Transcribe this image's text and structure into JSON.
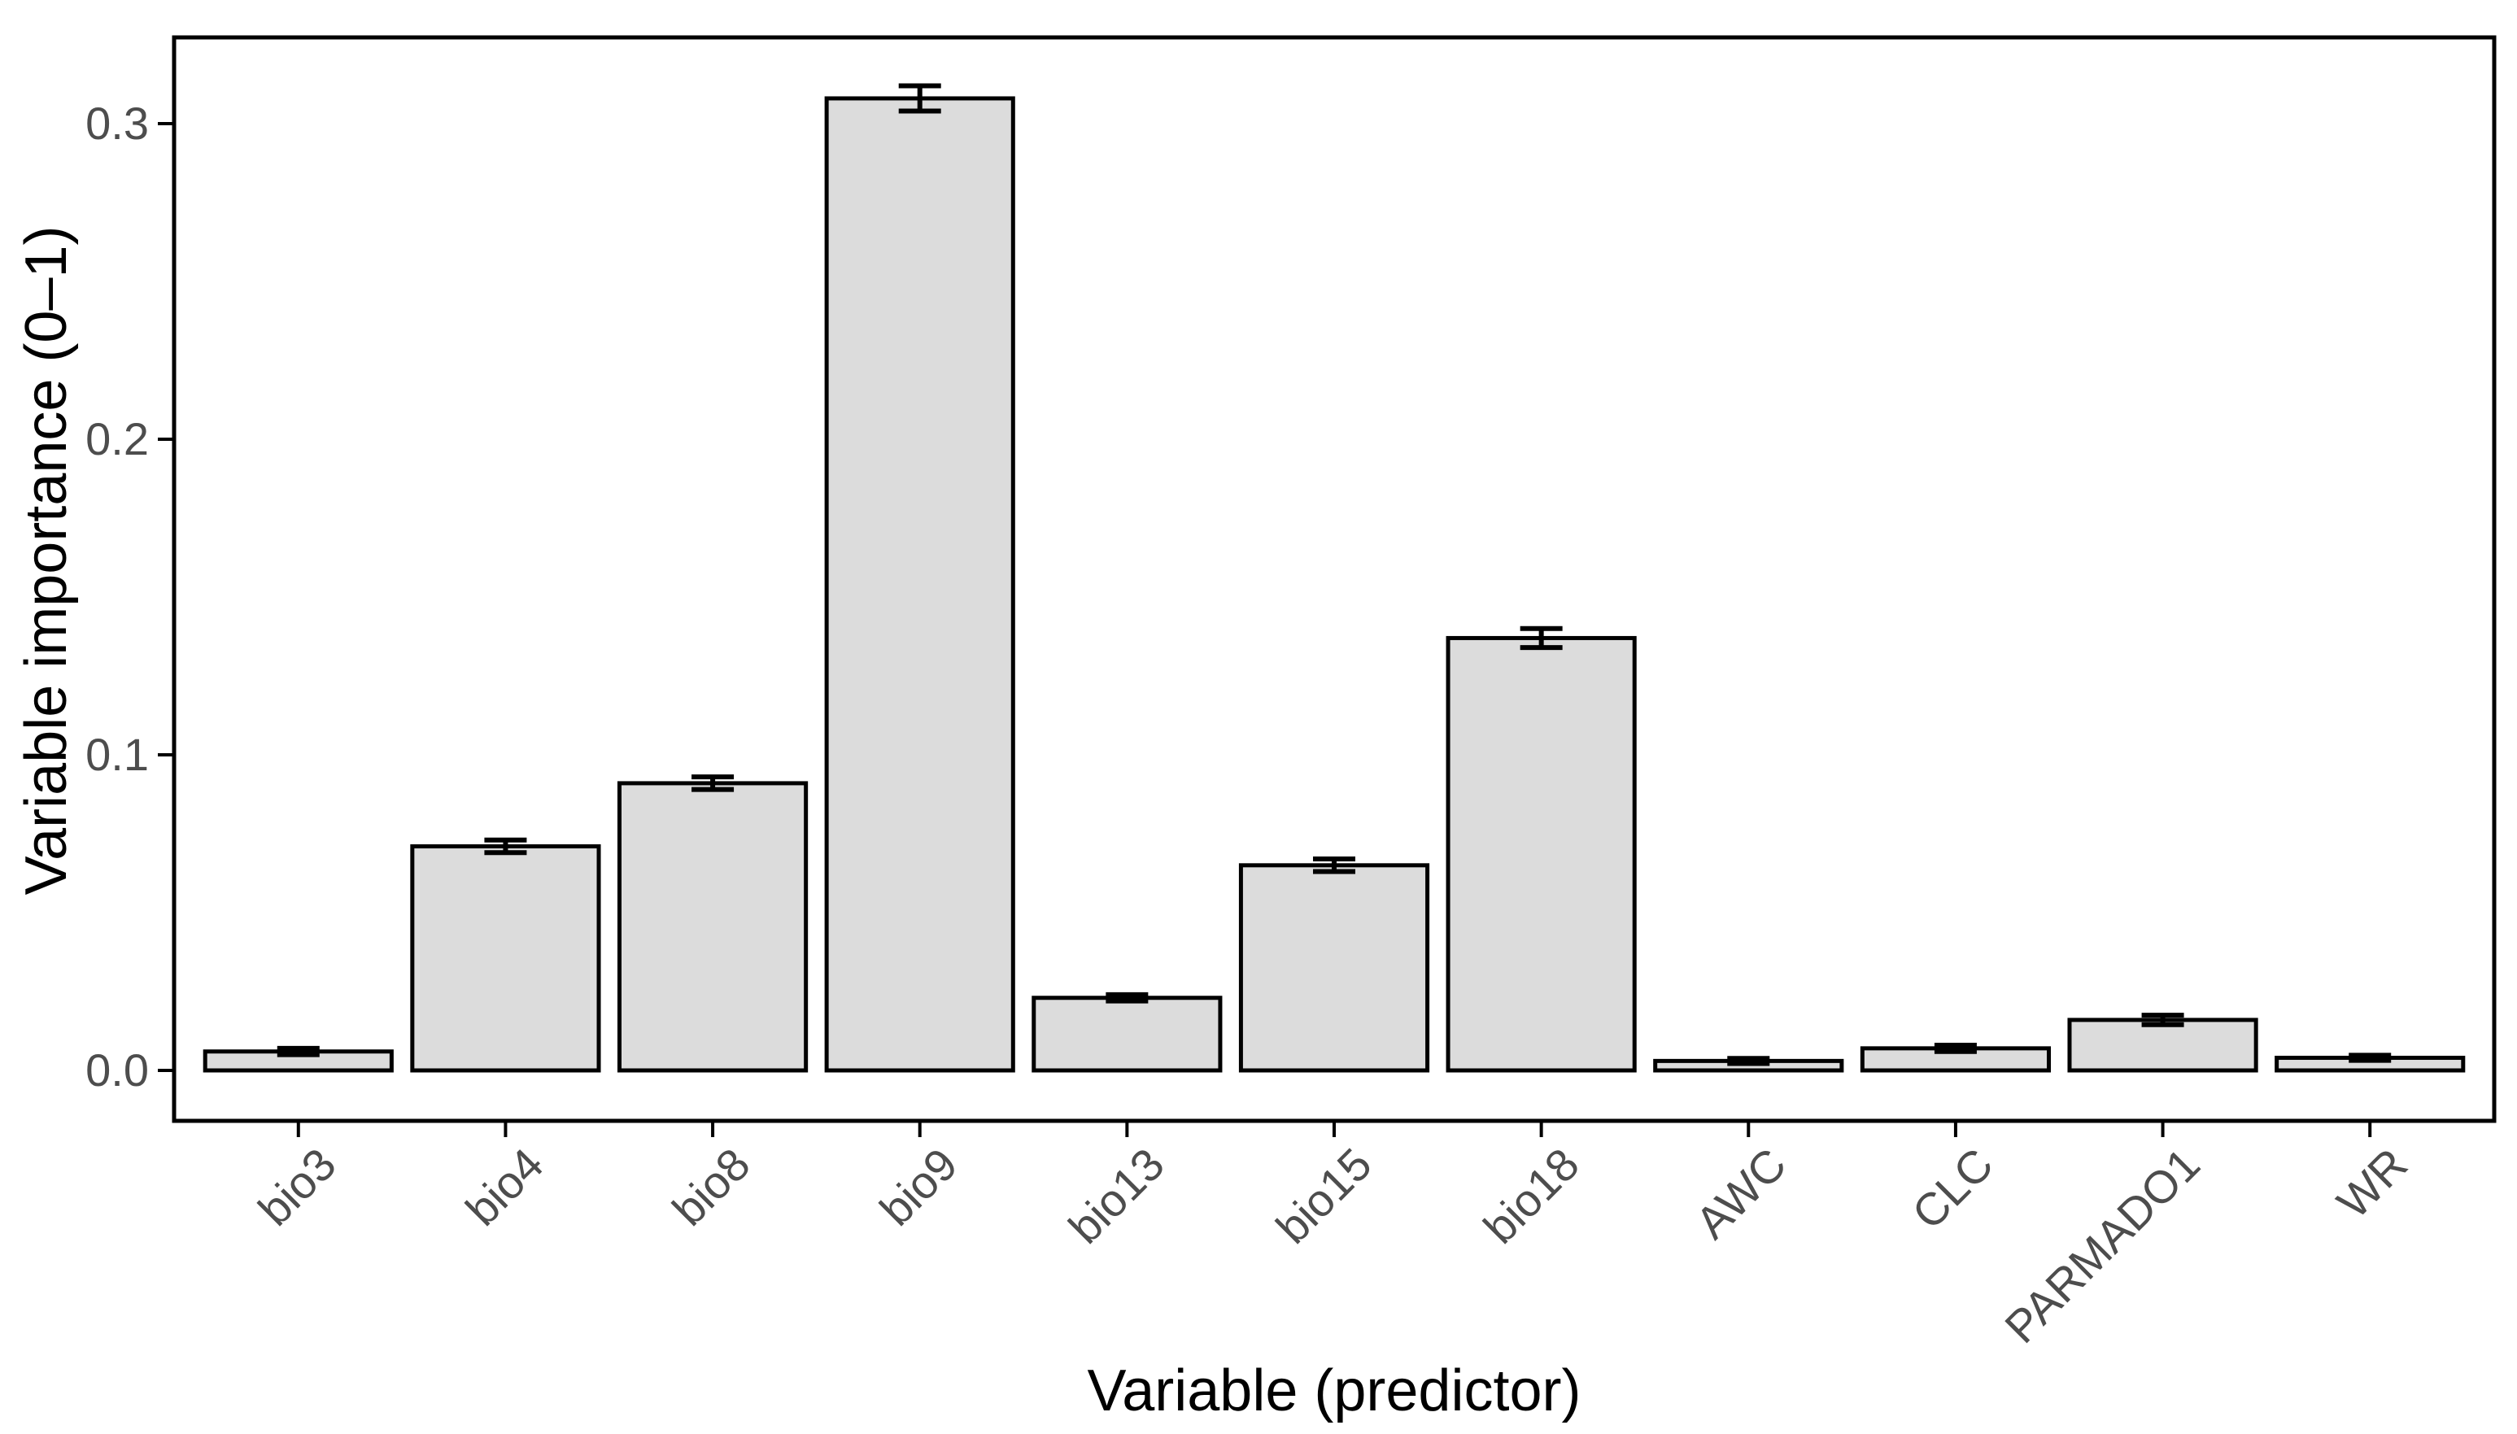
{
  "chart_data": {
    "type": "bar",
    "title": "",
    "xlabel": "Variable (predictor)",
    "ylabel": "Variable importance (0–1)",
    "categories": [
      "bio3",
      "bio4",
      "bio8",
      "bio9",
      "bio13",
      "bio15",
      "bio18",
      "AWC",
      "CLC",
      "PARMADO1",
      "WR"
    ],
    "values": [
      0.006,
      0.071,
      0.091,
      0.308,
      0.023,
      0.065,
      0.137,
      0.003,
      0.007,
      0.016,
      0.004
    ],
    "errors": [
      0.001,
      0.002,
      0.002,
      0.004,
      0.001,
      0.002,
      0.003,
      0.0008,
      0.001,
      0.0015,
      0.0008
    ],
    "error_bars": "capped whiskers, ± one standard error",
    "yticks": [
      0,
      0.1,
      0.2,
      0.3
    ],
    "ytick_labels": [
      "0.0",
      "0.1",
      "0.2",
      "0.3"
    ],
    "ylim": [
      -0.016,
      0.327
    ],
    "grid": false,
    "legend": "none",
    "bar_fill": "#dcdcdc",
    "bar_stroke": "#000000",
    "error_color": "#000000",
    "axis_text_color": "#4d4d4d",
    "axis_title_color": "#000000",
    "panel_border_color": "#000000",
    "background": "#ffffff"
  }
}
